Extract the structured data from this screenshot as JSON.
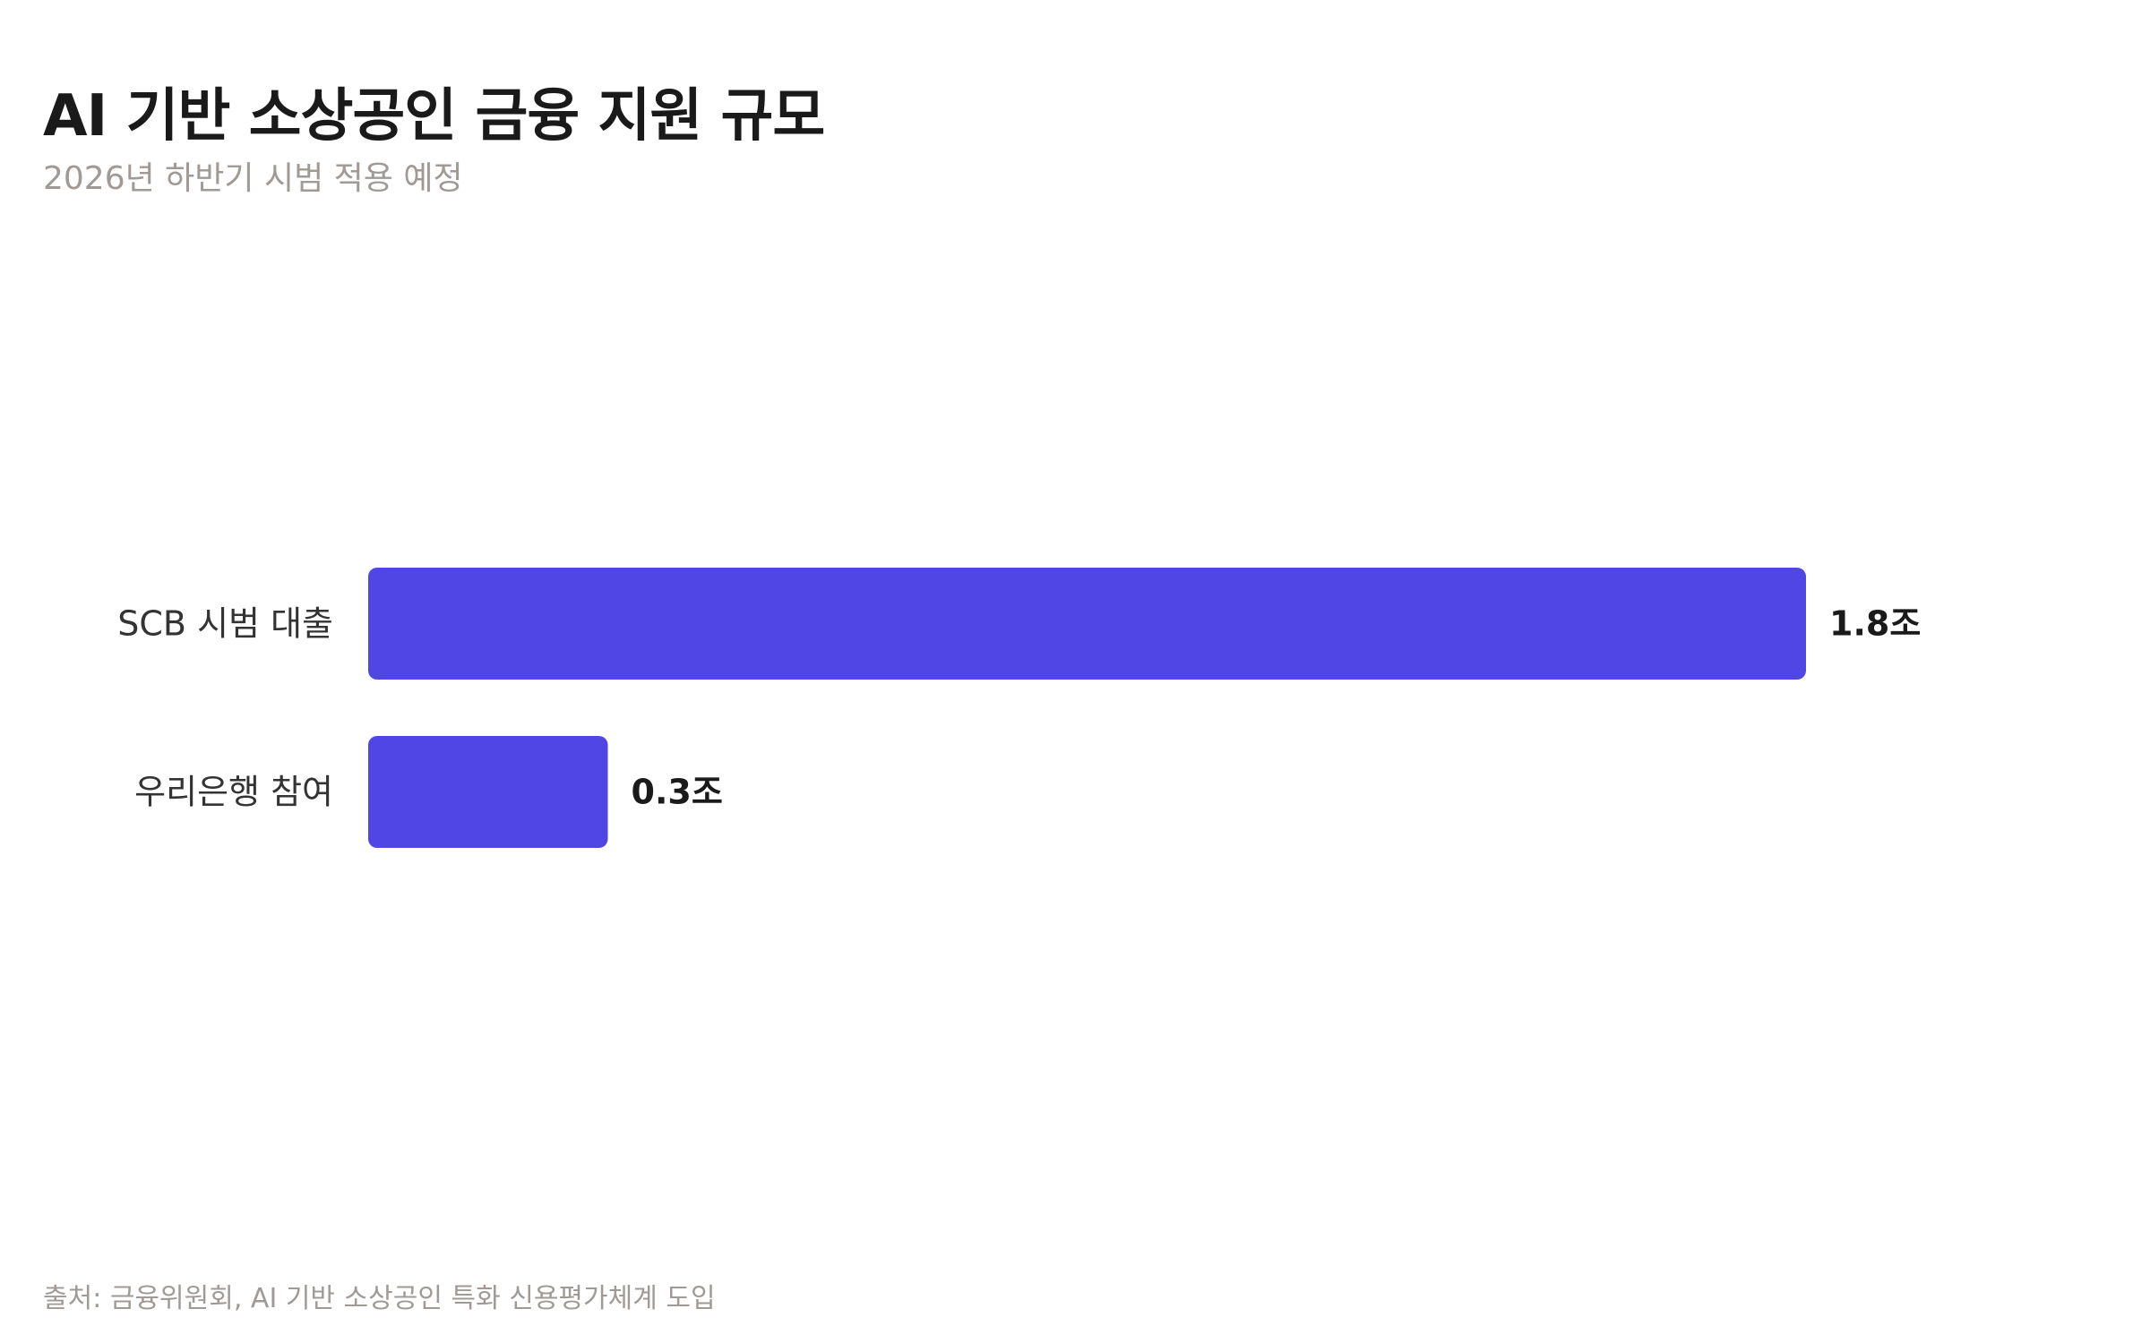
{
  "title": "AI 기반 소상공인 금융 지원 규모",
  "subtitle": "2026년 하반기 시범 적용 예정",
  "footer": "출처: 금융위원회, AI 기반 소상공인 특화 신용평가체계 도입",
  "colors": {
    "bar": "#5046E5",
    "text": "#1a1a1a",
    "muted": "#a09a96"
  },
  "chart_data": {
    "type": "bar",
    "orientation": "horizontal",
    "categories": [
      "SCB 시범 대출",
      "우리은행 참여"
    ],
    "values": [
      1.8,
      0.3
    ],
    "value_labels": [
      "1.8조",
      "0.3조"
    ],
    "unit": "조",
    "xlim": [
      0,
      1.8
    ],
    "grid": false
  }
}
